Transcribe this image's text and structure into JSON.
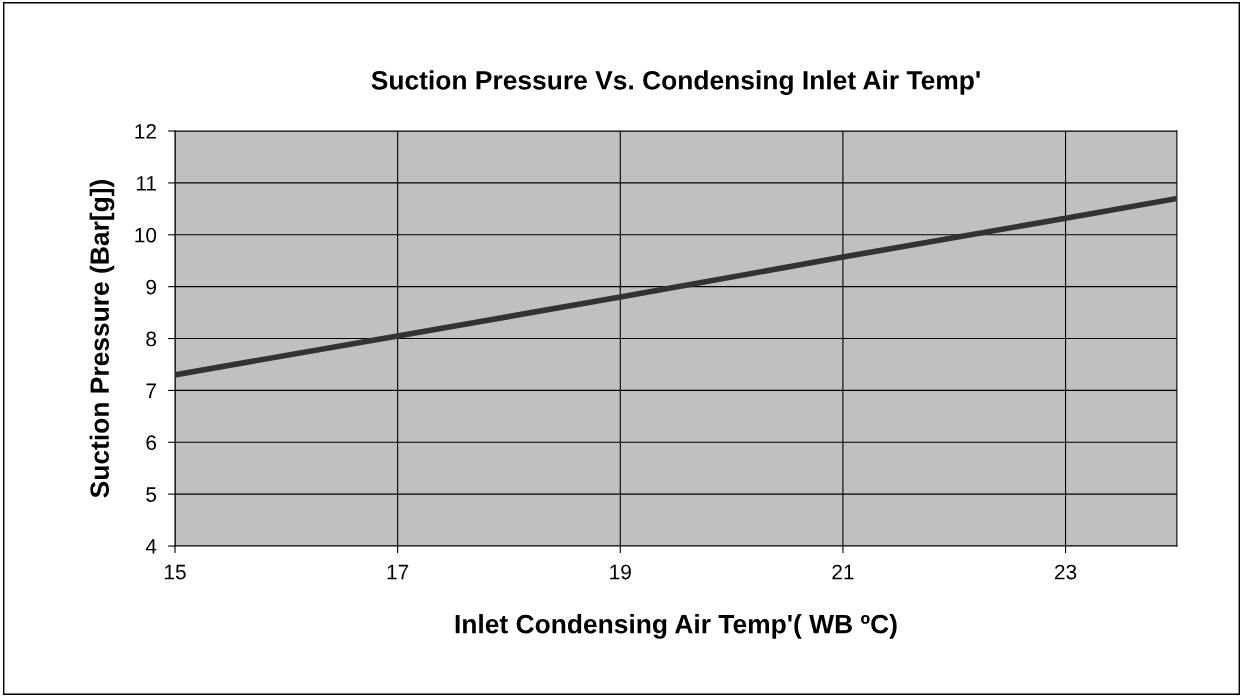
{
  "chart_data": {
    "type": "line",
    "title": "Suction Pressure Vs. Condensing Inlet Air Temp'",
    "xlabel": "Inlet Condensing Air Temp'( WB ºC)",
    "ylabel": "Suction Pressure (Bar[g])",
    "x": [
      15,
      17,
      19,
      21,
      23,
      24
    ],
    "series": [
      {
        "color": "#333333",
        "values": [
          7.3,
          8.05,
          8.8,
          9.57,
          10.32,
          10.7
        ]
      }
    ],
    "xlim": [
      15,
      24
    ],
    "xticks": [
      15,
      17,
      19,
      21,
      23
    ],
    "ylim": [
      4,
      12
    ],
    "yticks": [
      4,
      5,
      6,
      7,
      8,
      9,
      10,
      11,
      12
    ],
    "grid": true,
    "marker": "none",
    "line_style": "solid"
  }
}
